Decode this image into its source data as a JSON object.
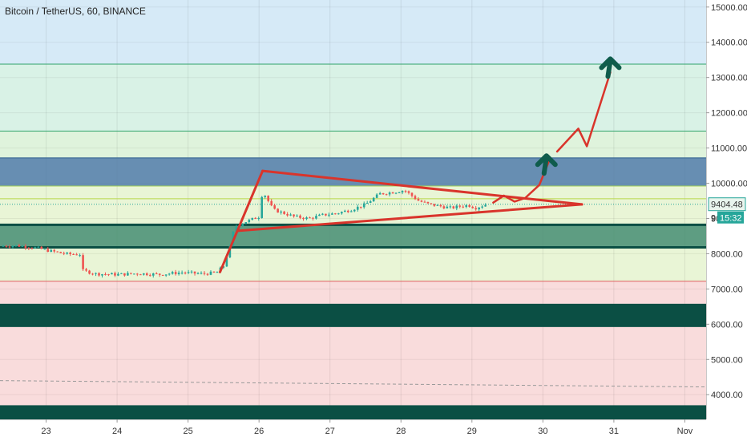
{
  "chart_data": {
    "type": "candlestick",
    "title": "Bitcoin / TetherUS, 60, BINANCE",
    "xlabel": "",
    "ylabel": "",
    "x_tick_labels": [
      "23",
      "24",
      "25",
      "26",
      "27",
      "28",
      "29",
      "30",
      "31",
      "Nov"
    ],
    "x_tick_positions": [
      23,
      24,
      25,
      26,
      27,
      28,
      29,
      30,
      31,
      32
    ],
    "xlim": [
      22.35,
      32.3
    ],
    "y_tick_labels": [
      "4000.00",
      "5000.00",
      "6000.00",
      "7000.00",
      "8000.00",
      "9000.00",
      "10000.00",
      "11000.00",
      "12000.00",
      "13000.00",
      "14000.00",
      "15000.00"
    ],
    "y_ticks": [
      4000,
      5000,
      6000,
      7000,
      8000,
      9000,
      10000,
      11000,
      12000,
      13000,
      14000,
      15000
    ],
    "ylim": [
      3300,
      15200
    ],
    "grid": true,
    "last_price": 9404.48,
    "last_price_label": "9404.48",
    "countdown_label": "15:32",
    "price_axis_partial_label": "9",
    "colors": {
      "up": "#26a69a",
      "down": "#ef5350",
      "annotation": "#d9342b",
      "arrow": "#0f5c4c",
      "dark_band": "#0b4f44",
      "zone_green": "#3f8a6f",
      "zone_blue": "#4a78aa"
    },
    "horizontal_bands": [
      {
        "from": 13380,
        "to": 15200,
        "color": "#d6eaf7"
      },
      {
        "from": 11480,
        "to": 13380,
        "color": "#d9f2e6"
      },
      {
        "from": 10720,
        "to": 11480,
        "color": "#dff3dc"
      },
      {
        "from": 7220,
        "to": 10720,
        "color": "#e9f5d6"
      },
      {
        "from": 6580,
        "to": 7220,
        "color": "#f9dcdc"
      },
      {
        "from": 3300,
        "to": 5920,
        "color": "#f9dcdc"
      }
    ],
    "zones": [
      {
        "name": "resistance",
        "from": 9920,
        "to": 10720,
        "color": "#4a78aa"
      },
      {
        "name": "support",
        "from": 8180,
        "to": 8820,
        "color": "#3f8a6f"
      },
      {
        "name": "dark-band-1",
        "from": 5920,
        "to": 6580,
        "color": "#0b4f44"
      },
      {
        "name": "dark-band-2",
        "from": 3300,
        "to": 3700,
        "color": "#0b4f44"
      }
    ],
    "level_lines": [
      {
        "price": 13380,
        "color": "#2fa36a"
      },
      {
        "price": 11480,
        "color": "#2fa36a"
      },
      {
        "price": 9920,
        "color": "#9fcf55"
      },
      {
        "price": 9560,
        "color": "#b8d84a"
      },
      {
        "price": 7220,
        "color": "#e06060"
      }
    ],
    "dashed_trend": {
      "from": [
        22.35,
        4400
      ],
      "to": [
        32.3,
        4220
      ],
      "color": "#999999"
    },
    "price_path": [
      [
        22.35,
        8220
      ],
      [
        22.6,
        8230
      ],
      [
        22.85,
        8170
      ],
      [
        23.1,
        8060
      ],
      [
        23.3,
        7990
      ],
      [
        23.5,
        7980
      ],
      [
        23.52,
        7520
      ],
      [
        23.7,
        7430
      ],
      [
        24.0,
        7410
      ],
      [
        24.3,
        7440
      ],
      [
        24.6,
        7410
      ],
      [
        24.9,
        7470
      ],
      [
        25.2,
        7430
      ],
      [
        25.4,
        7460
      ],
      [
        25.5,
        7650
      ],
      [
        25.6,
        8250
      ],
      [
        25.65,
        8750
      ],
      [
        25.8,
        8900
      ],
      [
        26.0,
        9050
      ],
      [
        26.05,
        9800
      ],
      [
        26.1,
        9600
      ],
      [
        26.2,
        9250
      ],
      [
        26.35,
        9150
      ],
      [
        26.5,
        9050
      ],
      [
        26.7,
        9000
      ],
      [
        26.9,
        9100
      ],
      [
        27.1,
        9150
      ],
      [
        27.3,
        9250
      ],
      [
        27.5,
        9400
      ],
      [
        27.7,
        9700
      ],
      [
        27.9,
        9750
      ],
      [
        28.05,
        9800
      ],
      [
        28.25,
        9500
      ],
      [
        28.4,
        9400
      ],
      [
        28.55,
        9350
      ],
      [
        28.7,
        9300
      ],
      [
        28.85,
        9350
      ],
      [
        28.95,
        9380
      ],
      [
        29.05,
        9300
      ],
      [
        29.2,
        9400
      ]
    ],
    "triangle": {
      "apex": [
        30.55,
        9400
      ],
      "upper_start": [
        26.05,
        10350
      ],
      "lower_start": [
        25.7,
        8650
      ]
    },
    "triangle_leg": {
      "from": [
        25.45,
        7480
      ],
      "to": [
        26.05,
        10350
      ]
    },
    "projection_path": [
      [
        29.3,
        9450
      ],
      [
        29.45,
        9650
      ],
      [
        29.6,
        9480
      ],
      [
        29.75,
        9580
      ],
      [
        29.95,
        9950
      ],
      [
        30.1,
        10700
      ]
    ],
    "projection_arrow_1": {
      "tip": [
        30.05,
        10780
      ]
    },
    "projection_path_2": [
      [
        30.2,
        10900
      ],
      [
        30.5,
        11550
      ],
      [
        30.62,
        11050
      ],
      [
        30.95,
        13150
      ]
    ],
    "projection_arrow_2": {
      "tip": [
        30.95,
        13530
      ]
    }
  }
}
